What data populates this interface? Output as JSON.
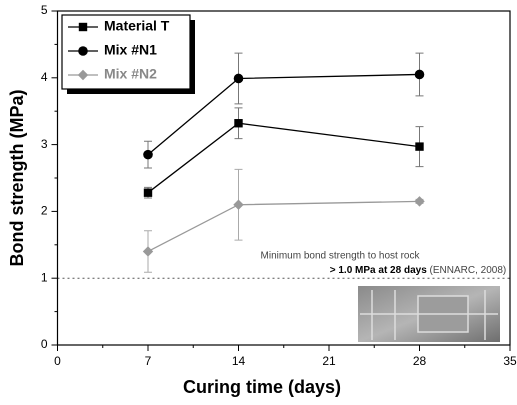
{
  "chart_data": {
    "type": "line",
    "xlabel": "Curing time (days)",
    "ylabel": "Bond strength (MPa)",
    "x": [
      7,
      14,
      28
    ],
    "xlim": [
      0,
      35
    ],
    "xticks": [
      0,
      7,
      14,
      21,
      28,
      35
    ],
    "ylim": [
      0,
      5
    ],
    "yticks": [
      0,
      1,
      2,
      3,
      4,
      5
    ],
    "legend": "upper left",
    "series": [
      {
        "name": "Material T",
        "color": "#000000",
        "marker": "square",
        "values": [
          2.28,
          3.32,
          2.97
        ],
        "errors": [
          0.08,
          0.23,
          0.3
        ]
      },
      {
        "name": "Mix #N1",
        "color": "#000000",
        "marker": "circle",
        "values": [
          2.85,
          3.99,
          4.05
        ],
        "errors": [
          0.2,
          0.38,
          0.32
        ]
      },
      {
        "name": "Mix #N2",
        "color": "#999999",
        "marker": "diamond",
        "values": [
          1.4,
          2.1,
          2.15
        ],
        "errors": [
          0.31,
          0.53,
          0.03
        ]
      }
    ],
    "reference_line": {
      "value": 1,
      "style": "dotted"
    },
    "annotation": {
      "line1": "Minimum bond strength to host rock",
      "line2_bold": "> 1.0 MPa at 28 days",
      "line2_rest": "(ENNARC, 2008)"
    }
  }
}
